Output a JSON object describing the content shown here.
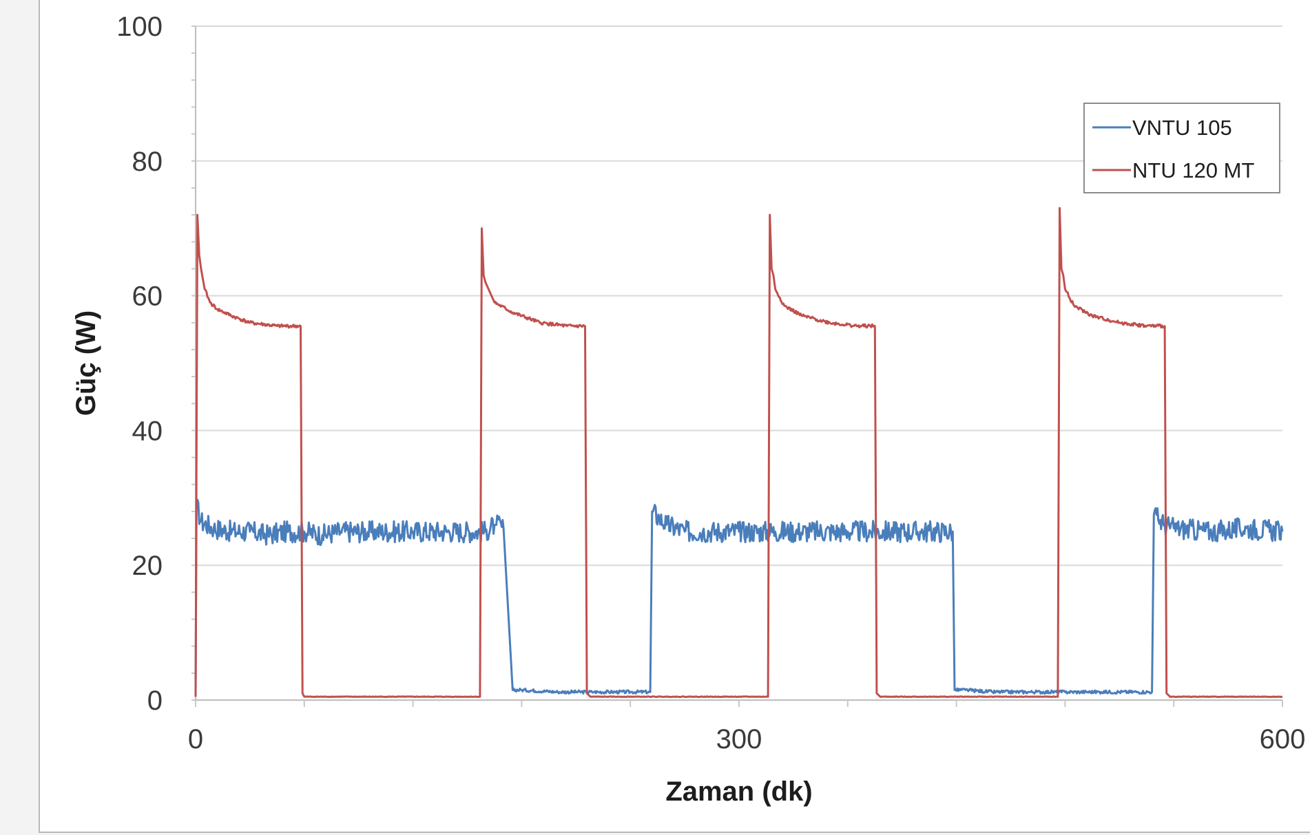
{
  "chart_data": {
    "type": "line",
    "title": "",
    "xlabel": "Zaman (dk)",
    "ylabel": "Güç (W)",
    "xlim": [
      0,
      600
    ],
    "ylim": [
      0,
      100
    ],
    "x_ticks": [
      0,
      300,
      600
    ],
    "y_ticks": [
      0,
      20,
      40,
      60,
      80,
      100
    ],
    "grid": "horizontal",
    "legend_position": "top-right",
    "series": [
      {
        "name": "VNTU 105",
        "color": "#4a7ebb",
        "x": [
          0,
          0.5,
          3,
          10,
          20,
          30,
          40,
          50,
          60,
          70,
          80,
          100,
          120,
          140,
          160,
          165,
          166,
          170,
          175,
          180,
          200,
          220,
          230,
          240,
          251,
          252,
          256,
          260,
          270,
          280,
          300,
          320,
          340,
          360,
          380,
          400,
          418,
          419,
          425,
          440,
          460,
          480,
          500,
          520,
          528,
          529,
          535,
          540,
          560,
          580,
          600
        ],
        "y": [
          0.5,
          29,
          26.5,
          25.5,
          25,
          25,
          24.5,
          25,
          25,
          24.5,
          25,
          25,
          25,
          25,
          25,
          26,
          26,
          25.5,
          1.5,
          1.5,
          1.2,
          1.2,
          1.2,
          1.2,
          1.2,
          28,
          27,
          26,
          25,
          25,
          25,
          25,
          25,
          25,
          25,
          25,
          25,
          1.5,
          1.5,
          1.2,
          1.2,
          1.2,
          1.2,
          1.2,
          1.2,
          27.5,
          26,
          25.5,
          25,
          25.5,
          25
        ]
      },
      {
        "name": "NTU 120 MT",
        "color": "#c0504d",
        "x": [
          0,
          1,
          2,
          3,
          5,
          8,
          12,
          20,
          30,
          45,
          58,
          59,
          60,
          100,
          140,
          157,
          158,
          159,
          160,
          165,
          175,
          190,
          205,
          215,
          216,
          218,
          260,
          316,
          317,
          318,
          319,
          320,
          325,
          335,
          350,
          365,
          375,
          376,
          378,
          420,
          476,
          477,
          478,
          479,
          480,
          485,
          495,
          510,
          525,
          535,
          536,
          538,
          600
        ],
        "y": [
          0.5,
          72,
          66,
          64,
          61,
          59,
          58,
          57,
          56,
          55.5,
          55.5,
          1,
          0.5,
          0.5,
          0.5,
          0.5,
          70,
          63,
          62,
          59,
          57.5,
          56,
          55.5,
          55.5,
          1,
          0.5,
          0.5,
          0.5,
          72,
          64,
          63,
          61,
          58.5,
          57,
          56,
          55.5,
          55.5,
          1,
          0.5,
          0.5,
          0.5,
          73,
          64,
          63,
          61,
          58.5,
          57,
          56,
          55.5,
          55.5,
          1,
          0.5,
          0.5
        ]
      }
    ]
  }
}
